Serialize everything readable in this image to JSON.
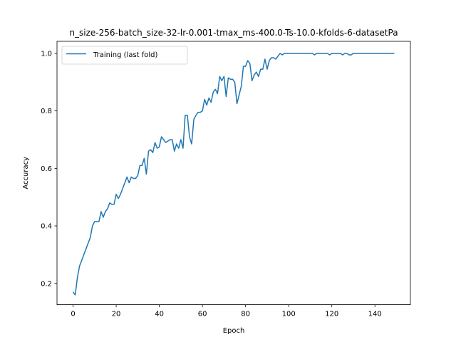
{
  "chart_data": {
    "type": "line",
    "title": "n_size-256-batch_size-32-lr-0.001-tmax_ms-400.0-Ts-10.0-kfolds-6-datasetPa",
    "xlabel": "Epoch",
    "ylabel": "Accuracy",
    "xlim": [
      -7.45,
      156.45
    ],
    "ylim": [
      0.126,
      1.042
    ],
    "xticks": [
      0,
      20,
      40,
      60,
      80,
      100,
      120,
      140
    ],
    "yticks": [
      0.2,
      0.4,
      0.6,
      0.8,
      1.0
    ],
    "xtick_labels": [
      "0",
      "20",
      "40",
      "60",
      "80",
      "100",
      "120",
      "140"
    ],
    "ytick_labels": [
      "0.2",
      "0.4",
      "0.6",
      "0.8",
      "1.0"
    ],
    "grid": false,
    "legend_position": "upper-left",
    "series": [
      {
        "name": "Training (last fold)",
        "color": "#1f77b4",
        "x": [
          0,
          1,
          2,
          3,
          4,
          5,
          6,
          7,
          8,
          9,
          10,
          11,
          12,
          13,
          14,
          15,
          16,
          17,
          18,
          19,
          20,
          21,
          22,
          23,
          24,
          25,
          26,
          27,
          28,
          29,
          30,
          31,
          32,
          33,
          34,
          35,
          36,
          37,
          38,
          39,
          40,
          41,
          42,
          43,
          44,
          45,
          46,
          47,
          48,
          49,
          50,
          51,
          52,
          53,
          54,
          55,
          56,
          57,
          58,
          59,
          60,
          61,
          62,
          63,
          64,
          65,
          66,
          67,
          68,
          69,
          70,
          71,
          72,
          73,
          74,
          75,
          76,
          77,
          78,
          79,
          80,
          81,
          82,
          83,
          84,
          85,
          86,
          87,
          88,
          89,
          90,
          91,
          92,
          93,
          94,
          95,
          96,
          97,
          98,
          99,
          100,
          101,
          102,
          103,
          104,
          105,
          106,
          107,
          108,
          109,
          110,
          111,
          112,
          113,
          114,
          115,
          116,
          117,
          118,
          119,
          120,
          121,
          122,
          123,
          124,
          125,
          126,
          127,
          128,
          129,
          130,
          131,
          132,
          133,
          134,
          135,
          136,
          137,
          138,
          139,
          140,
          141,
          142,
          143,
          144,
          145,
          146,
          147,
          148,
          149
        ],
        "y": [
          0.17,
          0.16,
          0.22,
          0.26,
          0.28,
          0.3,
          0.32,
          0.34,
          0.36,
          0.4,
          0.415,
          0.415,
          0.415,
          0.45,
          0.43,
          0.45,
          0.46,
          0.48,
          0.475,
          0.475,
          0.51,
          0.495,
          0.51,
          0.53,
          0.55,
          0.57,
          0.55,
          0.57,
          0.565,
          0.565,
          0.575,
          0.61,
          0.61,
          0.635,
          0.58,
          0.66,
          0.665,
          0.655,
          0.69,
          0.67,
          0.675,
          0.71,
          0.7,
          0.69,
          0.695,
          0.7,
          0.7,
          0.66,
          0.685,
          0.67,
          0.7,
          0.67,
          0.785,
          0.785,
          0.71,
          0.685,
          0.77,
          0.785,
          0.795,
          0.795,
          0.8,
          0.84,
          0.82,
          0.845,
          0.83,
          0.865,
          0.875,
          0.86,
          0.92,
          0.905,
          0.92,
          0.85,
          0.915,
          0.91,
          0.91,
          0.9,
          0.825,
          0.855,
          0.885,
          0.955,
          0.955,
          0.975,
          0.965,
          0.905,
          0.925,
          0.935,
          0.92,
          0.945,
          0.945,
          0.98,
          0.945,
          0.975,
          0.985,
          0.985,
          0.98,
          0.99,
          1.0,
          0.995,
          1.0,
          1.0,
          1.0,
          1.0,
          1.0,
          1.0,
          1.0,
          1.0,
          1.0,
          1.0,
          1.0,
          1.0,
          1.0,
          1.0,
          0.995,
          1.0,
          1.0,
          1.0,
          1.0,
          1.0,
          1.0,
          0.995,
          1.0,
          1.0,
          1.0,
          1.0,
          1.0,
          0.995,
          1.0,
          1.0,
          0.995,
          0.995,
          1.0,
          1.0,
          1.0,
          1.0,
          1.0,
          1.0,
          1.0,
          1.0,
          1.0,
          1.0,
          1.0,
          1.0,
          1.0,
          1.0,
          1.0,
          1.0,
          1.0,
          1.0,
          1.0,
          1.0
        ]
      }
    ]
  }
}
